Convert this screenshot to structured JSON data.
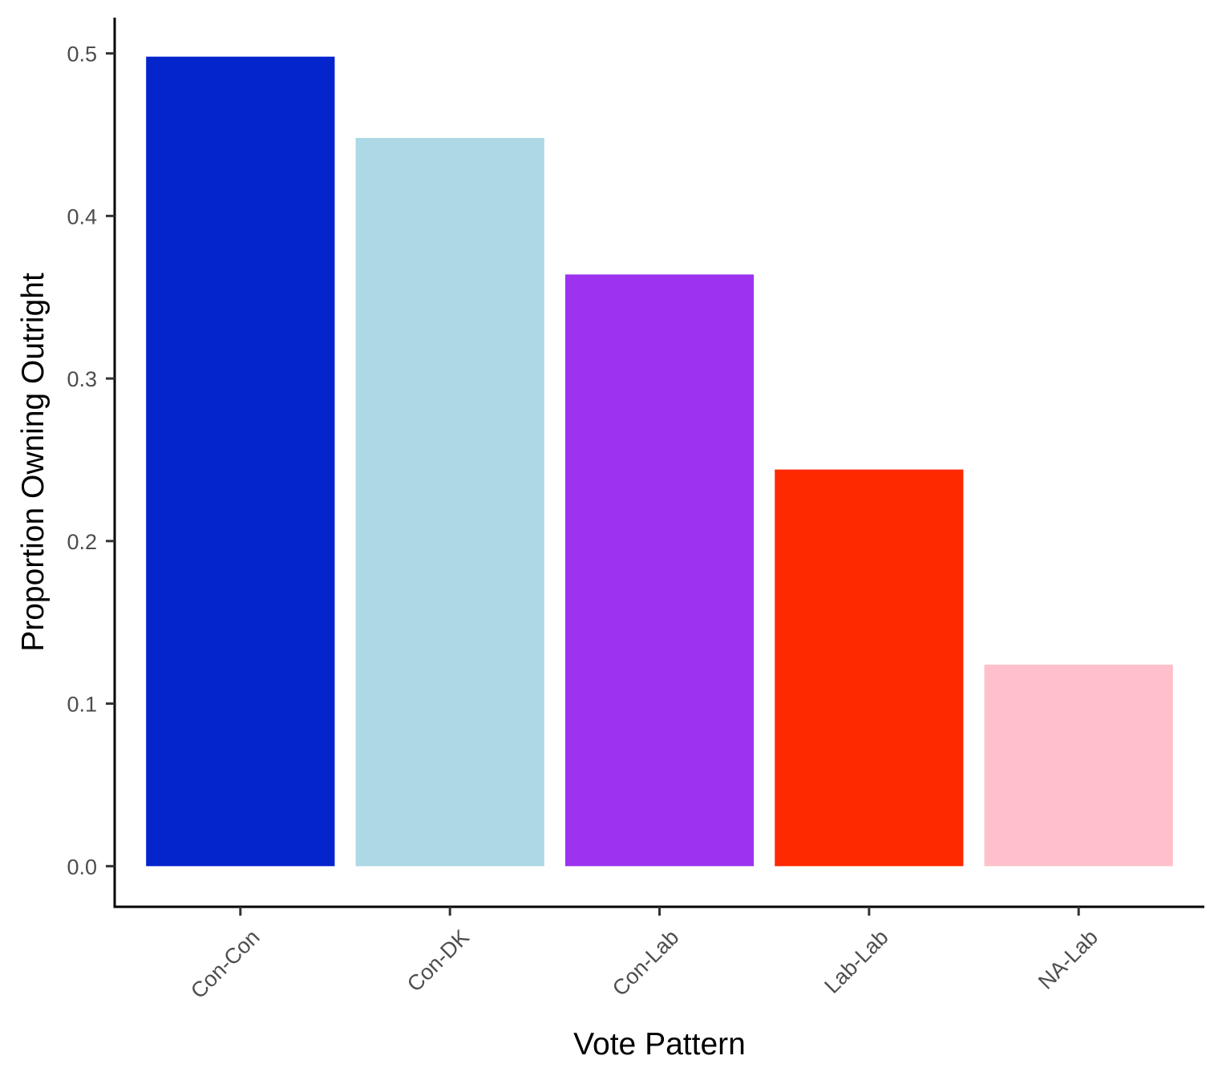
{
  "chart_data": {
    "type": "bar",
    "title": "",
    "xlabel": "Vote Pattern",
    "ylabel": "Proportion Owning Outright",
    "categories": [
      "Con-Con",
      "Con-DK",
      "Con-Lab",
      "Lab-Lab",
      "NA-Lab"
    ],
    "values": [
      0.498,
      0.448,
      0.364,
      0.244,
      0.124
    ],
    "colors": [
      "#0424CC",
      "#ADD8E6",
      "#9D33EE",
      "#FF2900",
      "#FFC0CB"
    ],
    "ylim": [
      -0.025,
      0.522
    ],
    "yticks": [
      0.0,
      0.1,
      0.2,
      0.3,
      0.4,
      0.5
    ],
    "ytick_labels": [
      "0.0",
      "0.1",
      "0.2",
      "0.3",
      "0.4",
      "0.5"
    ],
    "grid": false,
    "legend": "none"
  }
}
